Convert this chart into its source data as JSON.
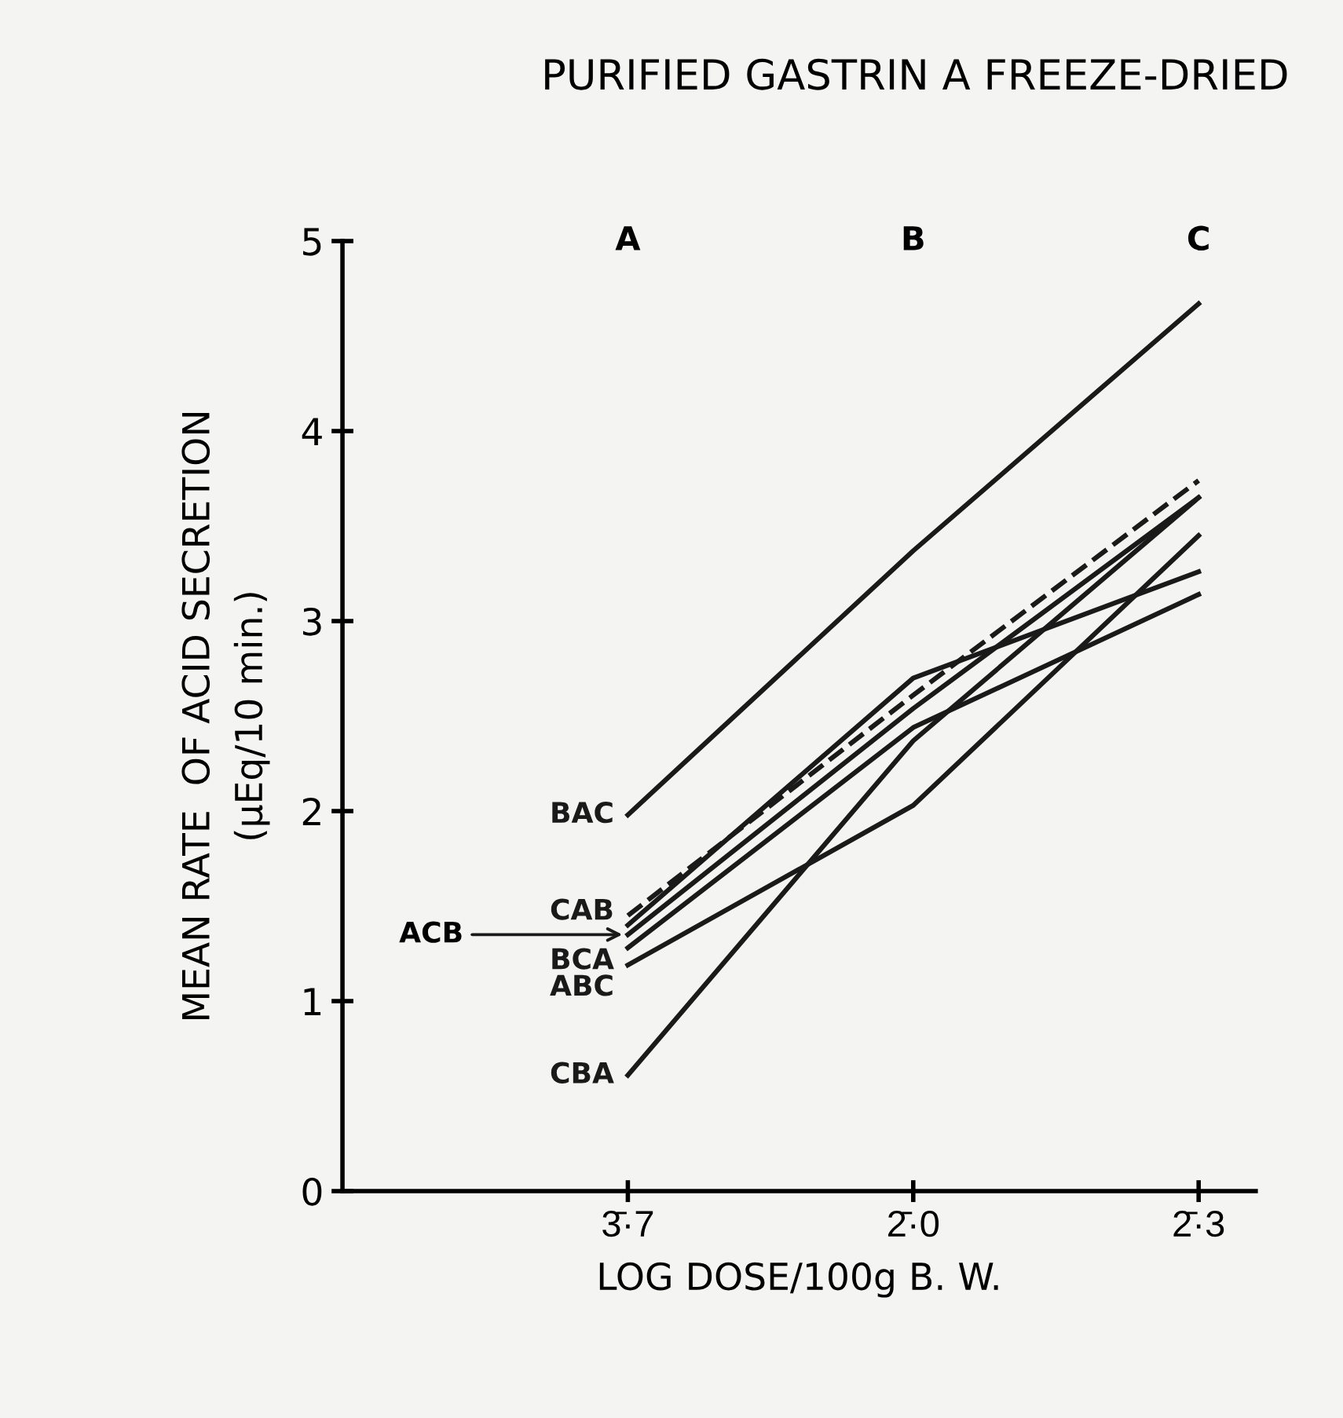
{
  "chart_data": {
    "type": "line",
    "title": "PURIFIED GASTRIN A FREEZE-DRIED",
    "xlabel": "LOG DOSE/100g B. W.",
    "ylabel": "MEAN RATE  OF ACID SECRETION\n(μEq/10 min.)",
    "categories": [
      "3̄·7",
      "2̄·0",
      "2̄·3"
    ],
    "ylim": [
      0,
      5
    ],
    "yticks": [
      0,
      1,
      2,
      3,
      4,
      5
    ],
    "series": [
      {
        "name": "BAC",
        "color": "#1a1a1a",
        "values": [
          1.98,
          3.37,
          4.67
        ]
      },
      {
        "color": "#1a1a1a",
        "line_style": "dashed",
        "values": [
          1.45,
          2.61,
          3.74
        ]
      },
      {
        "name": "CAB",
        "color": "#1a1a1a",
        "values": [
          1.4,
          2.7,
          3.26
        ]
      },
      {
        "name": "ACB",
        "color": "#1a1a1a",
        "values": [
          1.35,
          2.54,
          3.65
        ]
      },
      {
        "name": "BCA",
        "color": "#1a1a1a",
        "values": [
          1.28,
          2.44,
          3.14
        ]
      },
      {
        "name": "ABC",
        "color": "#1a1a1a",
        "values": [
          1.19,
          2.03,
          3.45
        ]
      },
      {
        "name": "CBA",
        "color": "#1a1a1a",
        "values": [
          0.61,
          2.37,
          3.65
        ]
      }
    ],
    "annotations": [
      "A",
      "B",
      "C"
    ],
    "line_style": "solid",
    "marker": "none",
    "grid": false,
    "legend": false
  }
}
